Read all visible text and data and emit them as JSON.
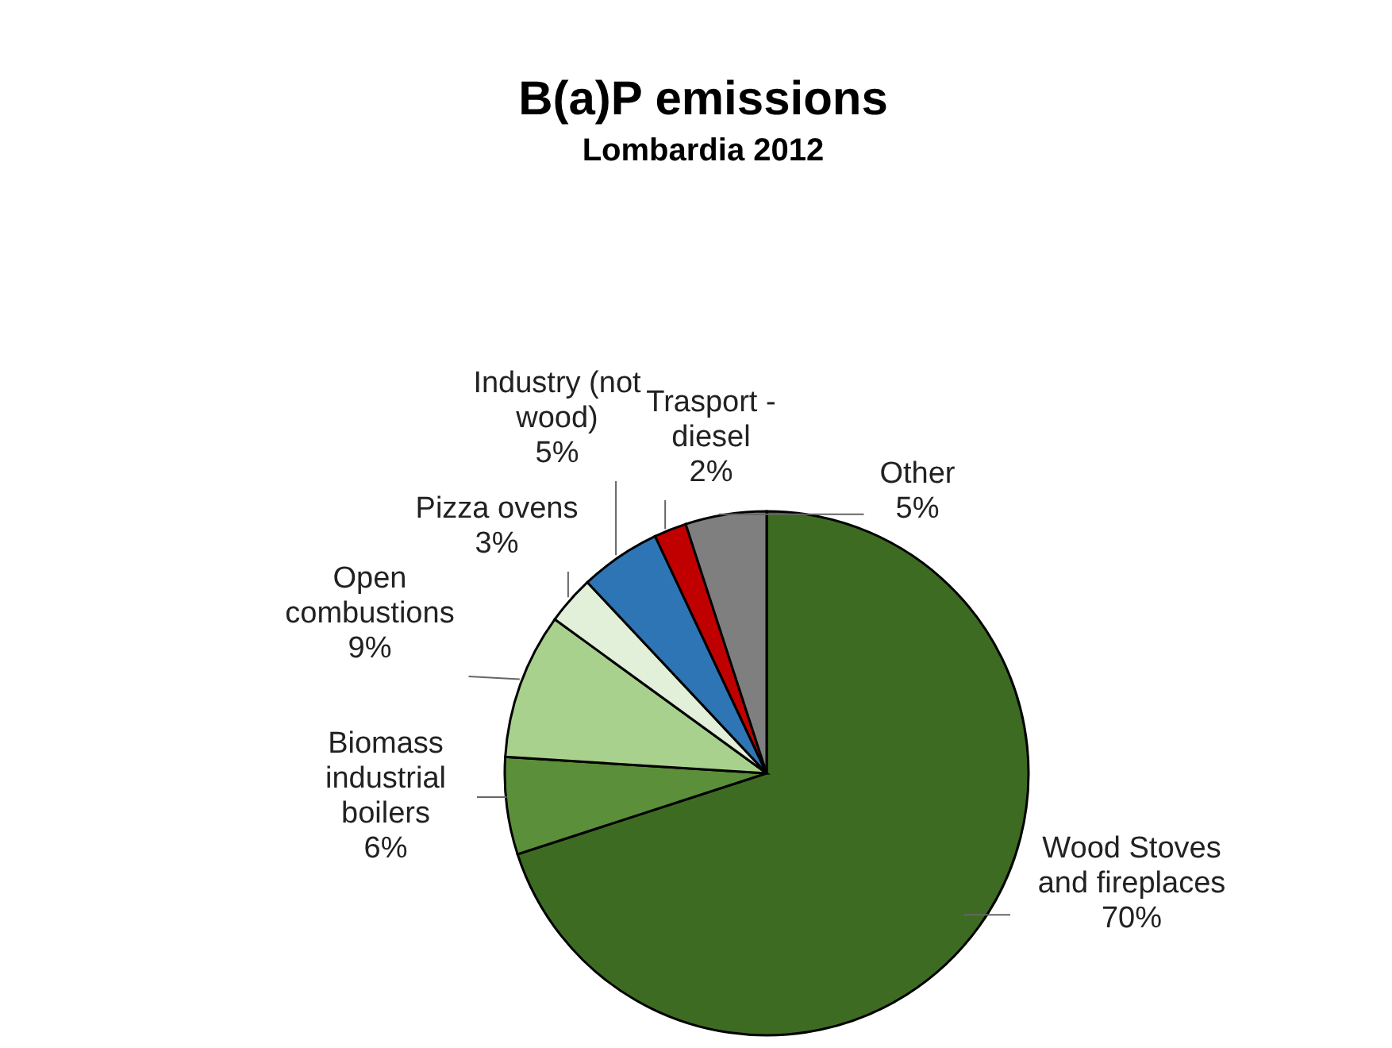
{
  "chart_data": {
    "type": "pie",
    "title": "B(a)P emissions",
    "subtitle": "Lombardia 2012",
    "categories": [
      "Wood Stoves and fireplaces",
      "Biomass industrial boilers",
      "Open combustions",
      "Pizza ovens",
      "Industry (not wood)",
      "Trasport - diesel",
      "Other"
    ],
    "values": [
      70,
      6,
      9,
      3,
      5,
      2,
      5
    ],
    "value_labels": [
      "70%",
      "6%",
      "9%",
      "3%",
      "5%",
      "2%",
      "5%"
    ],
    "colors": [
      "#3d6b22",
      "#5b8f3a",
      "#a9d18e",
      "#e2efd9",
      "#2e75b6",
      "#c00000",
      "#7f7f7f"
    ],
    "legend": false
  }
}
